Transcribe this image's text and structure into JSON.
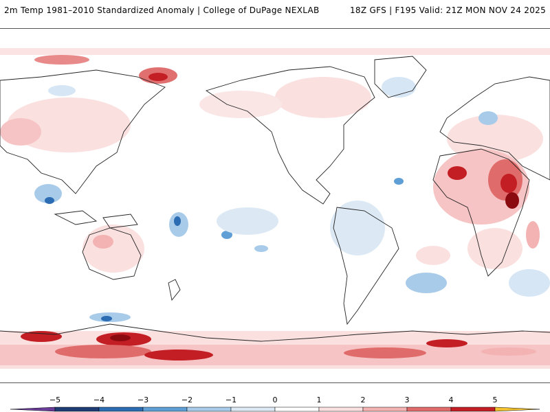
{
  "header": {
    "title_left": "2m Temp 1981–2010 Standardized Anomaly | College of DuPage NEXLAB",
    "title_right": "18Z GFS | F195 Valid: 21Z MON NOV 24 2025"
  },
  "colorbar": {
    "ticks": [
      "−5",
      "−4",
      "−3",
      "−2",
      "−1",
      "0",
      "1",
      "2",
      "3",
      "4",
      "5"
    ],
    "colors": [
      "#6a3d9a",
      "#1f3b73",
      "#2b6cb3",
      "#5f9fd6",
      "#a9cbea",
      "#dce9f5",
      "#ffffff",
      "#fbe0e0",
      "#f3b3b3",
      "#e06b6b",
      "#c41e25",
      "#8b0a10",
      "#f2c230"
    ]
  }
}
